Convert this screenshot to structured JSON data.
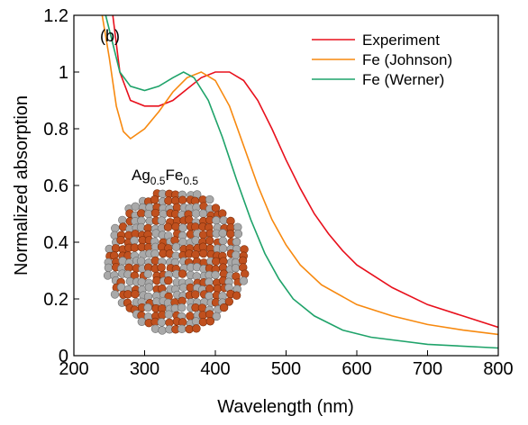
{
  "chart_data": {
    "type": "line",
    "panel_label": "(b)",
    "inset_label_parts": [
      "Ag",
      "0.5",
      "Fe",
      "0.5"
    ],
    "xlabel": "Wavelength (nm)",
    "ylabel": "Normalized absorption",
    "xlim": [
      200,
      800
    ],
    "ylim": [
      0,
      1.2
    ],
    "xticks": [
      200,
      300,
      400,
      500,
      600,
      700,
      800
    ],
    "yticks": [
      0,
      0.2,
      0.4,
      0.6,
      0.8,
      1,
      1.2
    ],
    "legend": "upper right",
    "series": [
      {
        "name": "Experiment",
        "color": "#e8101c",
        "x": [
          255,
          265,
          280,
          300,
          320,
          340,
          360,
          380,
          400,
          420,
          440,
          460,
          480,
          500,
          520,
          540,
          560,
          580,
          600,
          650,
          700,
          750,
          800
        ],
        "values": [
          1.2,
          1.0,
          0.9,
          0.88,
          0.88,
          0.9,
          0.94,
          0.98,
          1.0,
          1.0,
          0.97,
          0.9,
          0.8,
          0.69,
          0.59,
          0.5,
          0.43,
          0.37,
          0.32,
          0.24,
          0.18,
          0.14,
          0.1
        ]
      },
      {
        "name": "Fe (Johnson)",
        "color": "#f7890f",
        "x": [
          240,
          250,
          260,
          270,
          280,
          300,
          320,
          340,
          360,
          380,
          400,
          420,
          440,
          460,
          480,
          500,
          520,
          550,
          600,
          650,
          700,
          750,
          800
        ],
        "values": [
          1.2,
          1.05,
          0.88,
          0.79,
          0.765,
          0.8,
          0.86,
          0.93,
          0.98,
          1.0,
          0.97,
          0.88,
          0.74,
          0.6,
          0.48,
          0.39,
          0.32,
          0.25,
          0.18,
          0.14,
          0.11,
          0.09,
          0.075
        ]
      },
      {
        "name": "Fe (Werner)",
        "color": "#1fa36a",
        "x": [
          245,
          255,
          265,
          280,
          300,
          320,
          340,
          355,
          370,
          390,
          410,
          430,
          450,
          470,
          490,
          510,
          540,
          580,
          620,
          700,
          800
        ],
        "values": [
          1.2,
          1.1,
          1.0,
          0.95,
          0.935,
          0.95,
          0.98,
          1.0,
          0.98,
          0.9,
          0.77,
          0.62,
          0.48,
          0.36,
          0.27,
          0.2,
          0.14,
          0.09,
          0.065,
          0.04,
          0.027
        ]
      }
    ]
  }
}
